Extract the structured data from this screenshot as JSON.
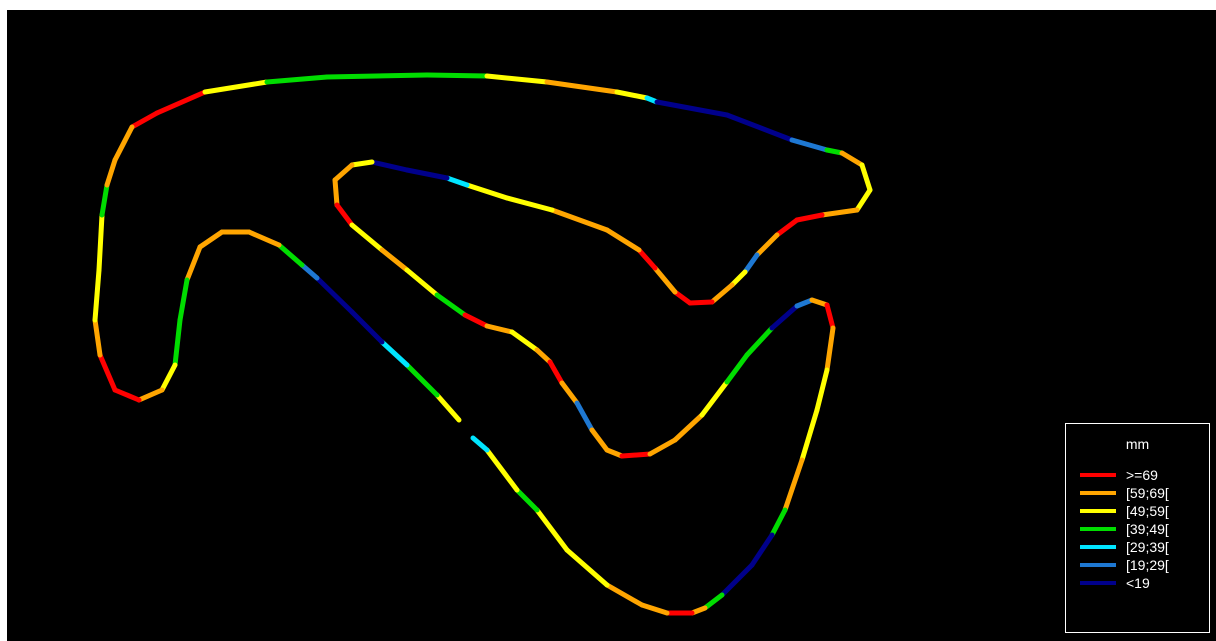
{
  "chart_data": {
    "type": "scatter",
    "description_of_content": "",
    "legend": {
      "title": "mm",
      "position": "bottom-right",
      "items": [
        {
          "label": ">=69",
          "color": "#ff0000"
        },
        {
          "label": "[59;69[",
          "color": "#ffa500"
        },
        {
          "label": "[49;59[",
          "color": "#ffff00"
        },
        {
          "label": "[39;49[",
          "color": "#00dd00"
        },
        {
          "label": "[29;39[",
          "color": "#00e5ff"
        },
        {
          "label": "[19;29[",
          "color": "#1e78d2"
        },
        {
          "label": "<19",
          "color": "#00008b"
        }
      ]
    },
    "background": "#000000",
    "grid": false,
    "axes_visible": false
  }
}
